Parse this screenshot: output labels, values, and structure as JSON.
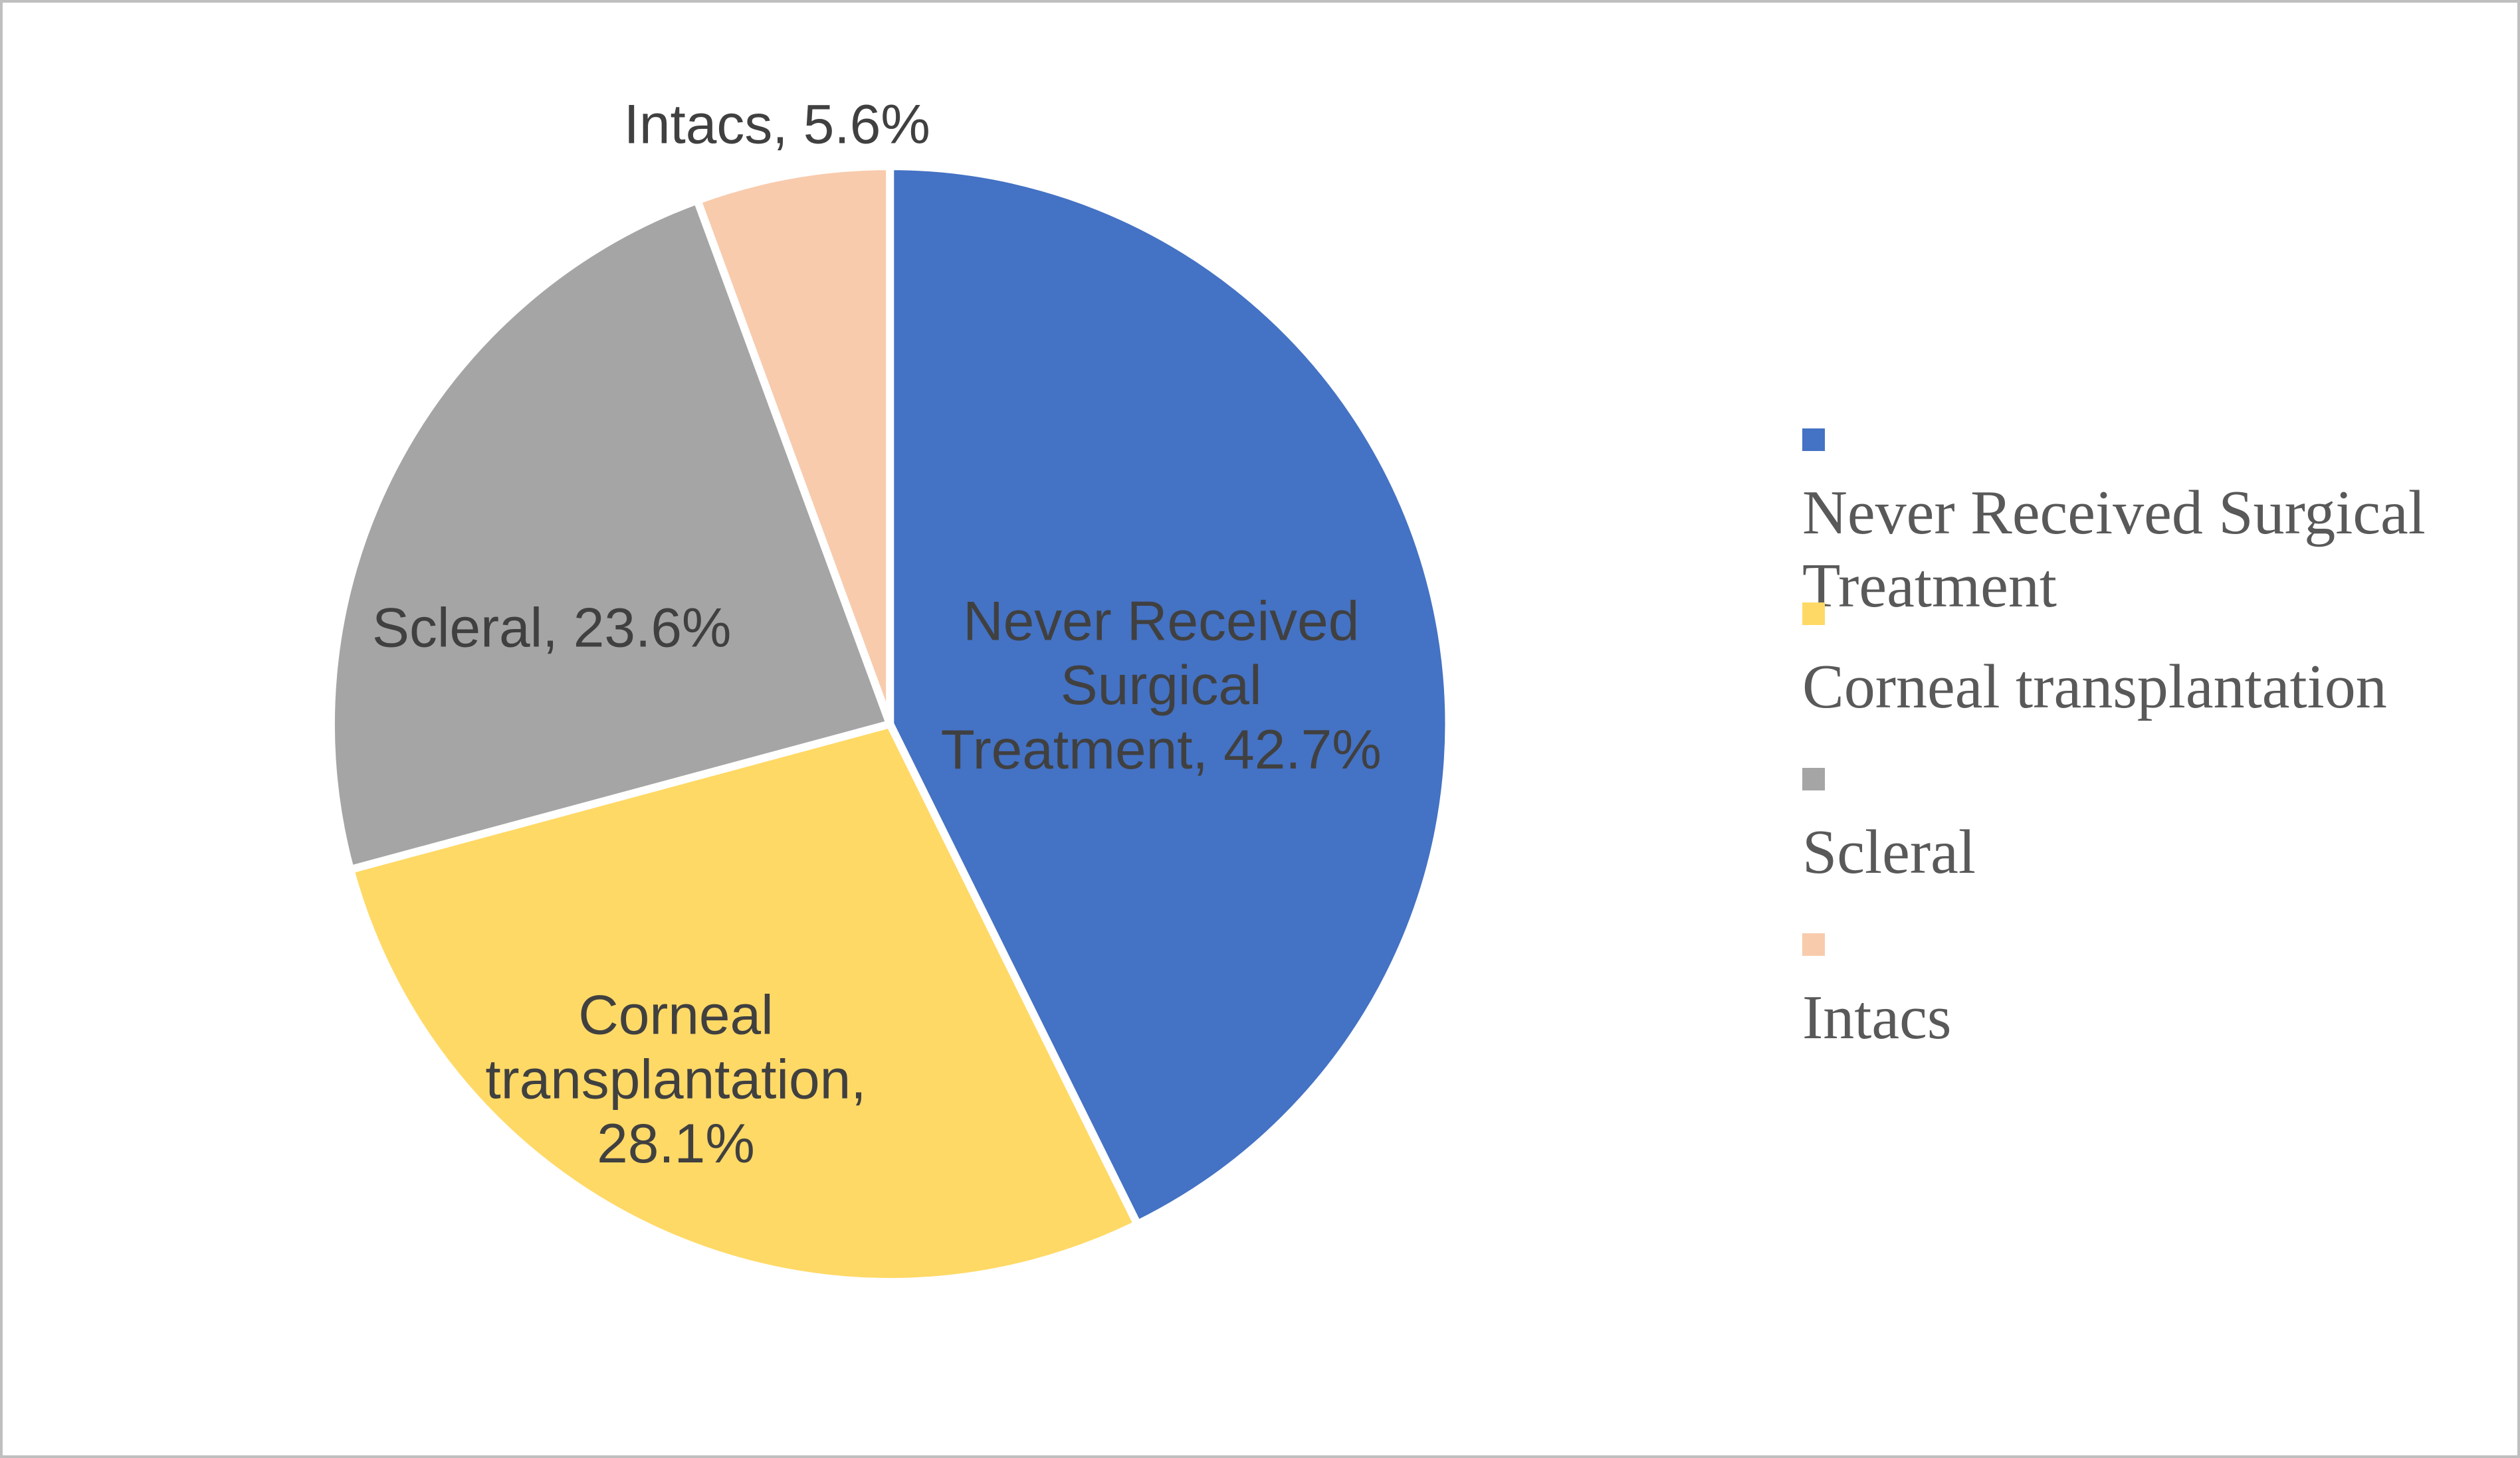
{
  "figure": {
    "background": "#FFFFFF",
    "border_color": "#BFBFBF"
  },
  "chart_data": {
    "type": "pie",
    "categories": [
      "Never Received Surgical Treatment",
      "Corneal transplantation",
      "Scleral",
      "Intacs"
    ],
    "values": [
      42.7,
      28.1,
      23.6,
      5.6
    ],
    "unit": "%",
    "colors": [
      "#4472C4",
      "#FFD966",
      "#A5A5A5",
      "#F8CBAD"
    ],
    "start_angle_deg": 0,
    "direction": "clockwise",
    "slice_border_color": "#FFFFFF",
    "legend_position": "right",
    "label_text_color": "#404040",
    "slice_labels": [
      {
        "lines": [
          "Never Received",
          "Surgical",
          "Treatment, 42.7%"
        ],
        "placement": "inside",
        "offset_frac": [
          0.485,
          -0.071
        ]
      },
      {
        "lines": [
          "Corneal",
          "transplantation,",
          "28.1%"
        ],
        "placement": "inside",
        "offset_frac": [
          -0.383,
          0.635
        ]
      },
      {
        "lines": [
          "Scleral, 23.6%"
        ],
        "placement": "inside",
        "offset_frac": [
          -0.605,
          -0.174
        ]
      },
      {
        "lines": [
          "Intacs, 5.6%"
        ],
        "placement": "outside",
        "offset_frac": [
          -0.202,
          -1.077
        ]
      }
    ]
  },
  "legend": {
    "text_color": "#595959",
    "items": [
      {
        "label": "Never Received Surgical Treatment",
        "lines": [
          "Never Received Surgical",
          "Treatment"
        ],
        "color": "#4472C4"
      },
      {
        "label": "Corneal transplantation",
        "lines": [
          "Corneal transplantation"
        ],
        "color": "#FFD966"
      },
      {
        "label": "Scleral",
        "lines": [
          "Scleral"
        ],
        "color": "#A5A5A5"
      },
      {
        "label": "Intacs",
        "lines": [
          "Intacs"
        ],
        "color": "#F8CBAD"
      }
    ]
  }
}
